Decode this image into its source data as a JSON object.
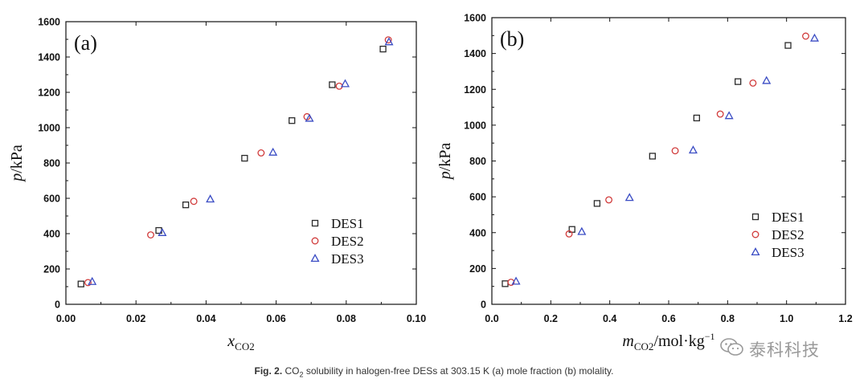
{
  "chart_data": [
    {
      "type": "scatter",
      "panel_label": "(a)",
      "ylabel_var": "p",
      "ylabel_unit": "/kPa",
      "xlabel_var": "x",
      "xlabel_sub": "CO2",
      "xlim": [
        0.0,
        0.1
      ],
      "ylim": [
        0,
        1600
      ],
      "xticks": [
        "0.00",
        "0.02",
        "0.04",
        "0.06",
        "0.08",
        "0.10"
      ],
      "yticks": [
        "0",
        "200",
        "400",
        "600",
        "800",
        "1000",
        "1200",
        "1400",
        "1600"
      ],
      "legend_position": "right",
      "series": [
        {
          "name": "DES1",
          "marker": "square",
          "color": "#2b2b2b",
          "x": [
            0.0043,
            0.0265,
            0.0342,
            0.051,
            0.0645,
            0.076,
            0.0905
          ],
          "y": [
            115,
            418,
            563,
            827,
            1040,
            1243,
            1445
          ]
        },
        {
          "name": "DES2",
          "marker": "circle",
          "color": "#d13b3b",
          "x": [
            0.0063,
            0.0242,
            0.0365,
            0.0557,
            0.0688,
            0.078,
            0.092
          ],
          "y": [
            123,
            393,
            583,
            857,
            1062,
            1235,
            1497
          ]
        },
        {
          "name": "DES3",
          "marker": "triangle",
          "color": "#3a4cc4",
          "x": [
            0.0075,
            0.0275,
            0.0412,
            0.0591,
            0.0695,
            0.0797,
            0.0922
          ],
          "y": [
            128,
            405,
            595,
            860,
            1052,
            1248,
            1485
          ]
        }
      ]
    },
    {
      "type": "scatter",
      "panel_label": "(b)",
      "ylabel_var": "p",
      "ylabel_unit": "/kPa",
      "xlabel_var": "m",
      "xlabel_sub": "CO2",
      "xlabel_unit": "/mol·kg",
      "xlabel_sup": "−1",
      "xlim": [
        0.0,
        1.2
      ],
      "ylim": [
        0,
        1600
      ],
      "xticks": [
        "0.0",
        "0.2",
        "0.4",
        "0.6",
        "0.8",
        "1.0",
        "1.2"
      ],
      "yticks": [
        "0",
        "200",
        "400",
        "600",
        "800",
        "1000",
        "1200",
        "1400",
        "1600"
      ],
      "legend_position": "right",
      "series": [
        {
          "name": "DES1",
          "marker": "square",
          "color": "#2b2b2b",
          "x": [
            0.045,
            0.272,
            0.357,
            0.545,
            0.695,
            0.835,
            1.005
          ],
          "y": [
            115,
            418,
            563,
            827,
            1040,
            1243,
            1445
          ]
        },
        {
          "name": "DES2",
          "marker": "circle",
          "color": "#d13b3b",
          "x": [
            0.065,
            0.262,
            0.397,
            0.622,
            0.775,
            0.886,
            1.065
          ],
          "y": [
            123,
            393,
            583,
            857,
            1062,
            1235,
            1497
          ]
        },
        {
          "name": "DES3",
          "marker": "triangle",
          "color": "#3a4cc4",
          "x": [
            0.082,
            0.305,
            0.467,
            0.683,
            0.805,
            0.932,
            1.095
          ],
          "y": [
            128,
            405,
            595,
            860,
            1052,
            1248,
            1485
          ]
        }
      ]
    }
  ],
  "caption": {
    "fig_label": "Fig. 2.",
    "text_before": " CO",
    "text_sub": "2",
    "text_after": " solubility in halogen-free DESs at 303.15 K (a) mole fraction (b) molality."
  },
  "watermark": {
    "text": "泰科科技",
    "icon": "wechat-icon"
  }
}
